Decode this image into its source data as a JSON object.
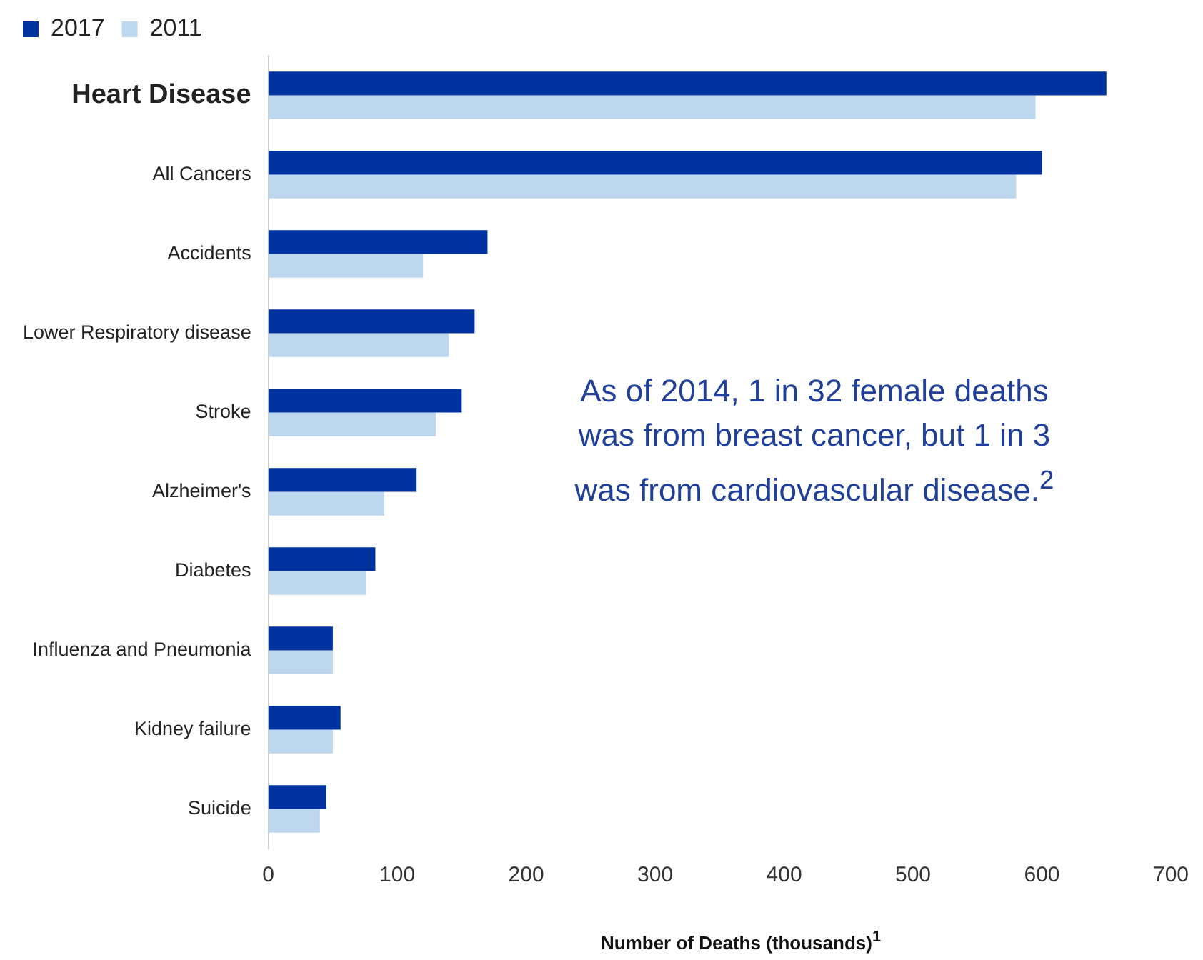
{
  "chart_data": {
    "type": "bar",
    "orientation": "horizontal",
    "xlabel": "Number of Deaths (thousands)$^{1}$",
    "categories": [
      "Heart Disease",
      "All Cancers",
      "Accidents",
      "Lower Respiratory disease",
      "Stroke",
      "Alzheimer's",
      "Diabetes",
      "Influenza and Pneumonia",
      "Kidney failure",
      "Suicide"
    ],
    "series": [
      {
        "name": "2017",
        "color": "#0033a0",
        "values": [
          650,
          600,
          170,
          160,
          150,
          115,
          83,
          50,
          56,
          45
        ]
      },
      {
        "name": "2011",
        "color": "#bdd7ee",
        "values": [
          595,
          580,
          120,
          140,
          130,
          90,
          76,
          50,
          50,
          40
        ]
      }
    ],
    "xlim": [
      0,
      700
    ],
    "xticks": [
      0,
      100,
      200,
      300,
      400,
      500,
      600,
      700
    ],
    "grid": false,
    "legend": "top left",
    "annotations": [
      "As of 2014, 1 in 32 female deaths was from breast cancer, but 1 in 3 was from cardiovascular disease.$^{2}$"
    ]
  }
}
